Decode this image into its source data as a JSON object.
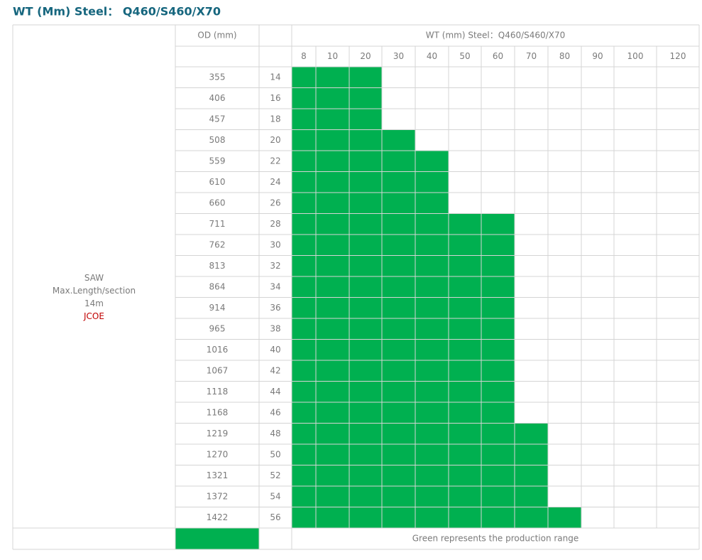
{
  "title": "WT (Mm) Steel： Q460/S460/X70",
  "side_label": {
    "lines": [
      "SAW",
      "Max.Length/section",
      "14m"
    ],
    "process": "JCOE"
  },
  "header": {
    "od_label": "OD (mm)",
    "wt_label": "WT (mm) Steel：Q460/S460/X70"
  },
  "wt_columns": [
    8,
    10,
    20,
    30,
    40,
    50,
    60,
    70,
    80,
    90,
    100,
    120
  ],
  "rows": [
    {
      "od": 355,
      "inch": 14,
      "green_to": 20
    },
    {
      "od": 406,
      "inch": 16,
      "green_to": 20
    },
    {
      "od": 457,
      "inch": 18,
      "green_to": 20
    },
    {
      "od": 508,
      "inch": 20,
      "green_to": 30
    },
    {
      "od": 559,
      "inch": 22,
      "green_to": 40
    },
    {
      "od": 610,
      "inch": 24,
      "green_to": 40
    },
    {
      "od": 660,
      "inch": 26,
      "green_to": 40
    },
    {
      "od": 711,
      "inch": 28,
      "green_to": 60
    },
    {
      "od": 762,
      "inch": 30,
      "green_to": 60
    },
    {
      "od": 813,
      "inch": 32,
      "green_to": 60
    },
    {
      "od": 864,
      "inch": 34,
      "green_to": 60
    },
    {
      "od": 914,
      "inch": 36,
      "green_to": 60
    },
    {
      "od": 965,
      "inch": 38,
      "green_to": 60
    },
    {
      "od": 1016,
      "inch": 40,
      "green_to": 60
    },
    {
      "od": 1067,
      "inch": 42,
      "green_to": 60
    },
    {
      "od": 1118,
      "inch": 44,
      "green_to": 60
    },
    {
      "od": 1168,
      "inch": 46,
      "green_to": 60
    },
    {
      "od": 1219,
      "inch": 48,
      "green_to": 70
    },
    {
      "od": 1270,
      "inch": 50,
      "green_to": 70
    },
    {
      "od": 1321,
      "inch": 52,
      "green_to": 70
    },
    {
      "od": 1372,
      "inch": 54,
      "green_to": 70
    },
    {
      "od": 1422,
      "inch": 56,
      "green_to": 80
    }
  ],
  "green_color": "#00b050",
  "legend": "Green represents the production range"
}
